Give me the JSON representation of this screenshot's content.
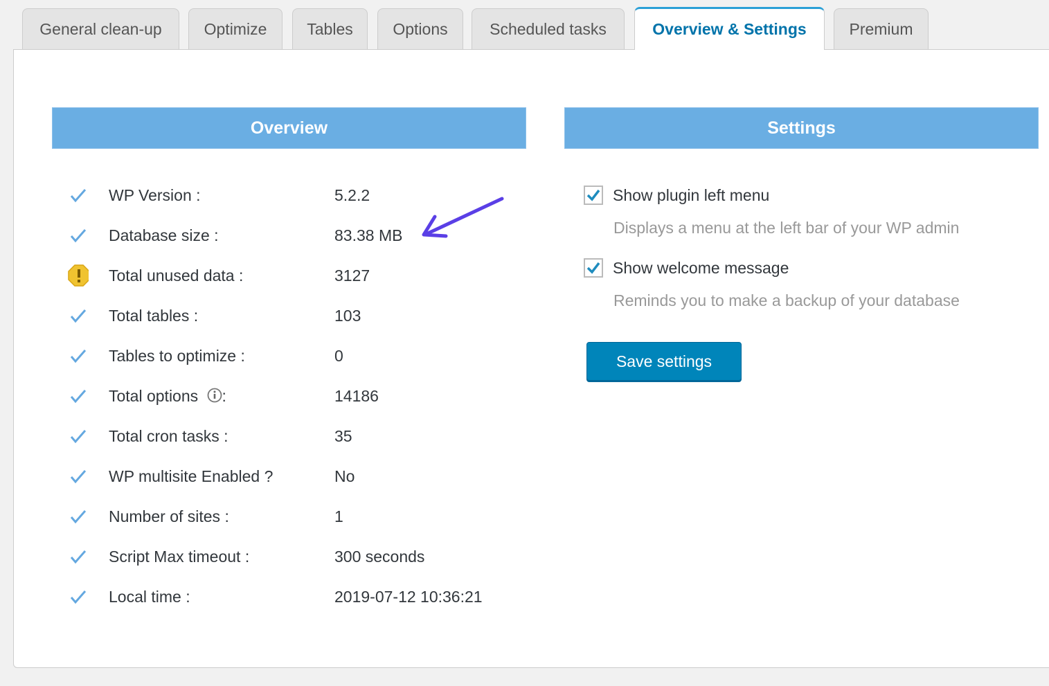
{
  "tabs": [
    {
      "label": "General clean-up"
    },
    {
      "label": "Optimize"
    },
    {
      "label": "Tables"
    },
    {
      "label": "Options"
    },
    {
      "label": "Scheduled tasks"
    },
    {
      "label": "Overview & Settings",
      "active": true
    },
    {
      "label": "Premium"
    }
  ],
  "overview": {
    "title": "Overview",
    "rows": [
      {
        "label": "WP Version :",
        "value": "5.2.2",
        "icon": "check-icon"
      },
      {
        "label": "Database size :",
        "value": "83.38 MB",
        "icon": "check-icon"
      },
      {
        "label": "Total unused data :",
        "value": "3127",
        "icon": "warning-icon"
      },
      {
        "label": "Total tables :",
        "value": "103",
        "icon": "check-icon"
      },
      {
        "label": "Tables to optimize :",
        "value": "0",
        "icon": "check-icon"
      },
      {
        "label": "Total options",
        "label_suffix": ":",
        "value": "14186",
        "icon": "check-icon",
        "info": true
      },
      {
        "label": "Total cron tasks :",
        "value": "35",
        "icon": "check-icon"
      },
      {
        "label": "WP multisite Enabled ?",
        "value": "No",
        "icon": "check-icon"
      },
      {
        "label": "Number of sites :",
        "value": "1",
        "icon": "check-icon"
      },
      {
        "label": "Script Max timeout :",
        "value": "300 seconds",
        "icon": "check-icon"
      },
      {
        "label": "Local time :",
        "value": "2019-07-12 10:36:21",
        "icon": "check-icon"
      }
    ]
  },
  "settings": {
    "title": "Settings",
    "options": [
      {
        "label": "Show plugin left menu",
        "description": "Displays a menu at the left bar of your WP admin",
        "checked": true
      },
      {
        "label": "Show welcome message",
        "description": "Reminds you to make a backup of your database",
        "checked": true
      }
    ],
    "save_label": "Save settings"
  },
  "colors": {
    "accent": "#0073aa",
    "header": "#6aaee3",
    "button": "#0085ba",
    "annotation_arrow": "#5a3fe6"
  }
}
